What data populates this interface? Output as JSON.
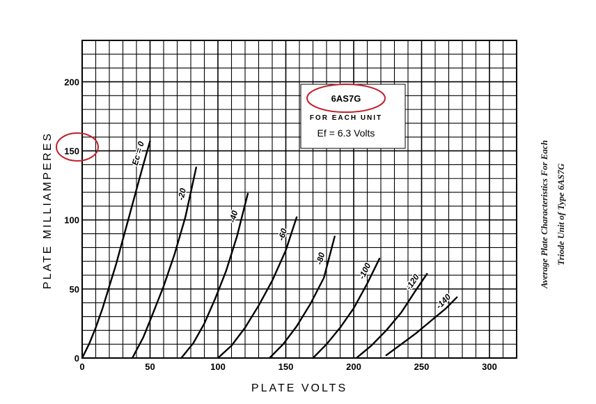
{
  "chart_data": {
    "type": "line",
    "title": "6AS7G",
    "subtitle": "FOR EACH UNIT",
    "condition": "Ef = 6.3 Volts",
    "xlabel": "PLATE VOLTS",
    "ylabel": "PLATE MILLIAMPERES",
    "xlim": [
      0,
      320
    ],
    "ylim": [
      0,
      230
    ],
    "x_ticks": [
      "0",
      "50",
      "100",
      "150",
      "200",
      "250",
      "300"
    ],
    "y_ticks": [
      "0",
      "50",
      "100",
      "150",
      "200"
    ],
    "grid": true,
    "series": [
      {
        "name": "Ec = 0",
        "x": [
          0,
          5,
          10,
          15,
          20,
          25,
          30,
          35,
          40,
          45,
          50
        ],
        "y": [
          0,
          10,
          22,
          36,
          52,
          68,
          86,
          104,
          122,
          140,
          157
        ]
      },
      {
        "name": "-20",
        "x": [
          37,
          45,
          52,
          60,
          68,
          76,
          84
        ],
        "y": [
          0,
          15,
          32,
          52,
          75,
          102,
          138
        ]
      },
      {
        "name": "-40",
        "x": [
          73,
          82,
          90,
          98,
          106,
          114,
          122
        ],
        "y": [
          0,
          11,
          25,
          43,
          63,
          88,
          119
        ]
      },
      {
        "name": "-60",
        "x": [
          100,
          110,
          120,
          130,
          140,
          150,
          158
        ],
        "y": [
          0,
          9,
          22,
          38,
          56,
          78,
          102
        ]
      },
      {
        "name": "-80",
        "x": [
          138,
          148,
          158,
          168,
          178,
          186
        ],
        "y": [
          0,
          10,
          23,
          39,
          58,
          88
        ]
      },
      {
        "name": "-100",
        "x": [
          170,
          180,
          190,
          200,
          210,
          219
        ],
        "y": [
          0,
          10,
          22,
          36,
          54,
          72
        ]
      },
      {
        "name": "-120",
        "x": [
          202,
          213,
          224,
          235,
          245,
          254
        ],
        "y": [
          0,
          9,
          20,
          33,
          48,
          61
        ]
      },
      {
        "name": "-140",
        "x": [
          224,
          235,
          246,
          257,
          268,
          276
        ],
        "y": [
          2,
          10,
          18,
          27,
          36,
          44
        ]
      }
    ]
  },
  "side_caption": {
    "line1": "Average Plate Characteristics For Each",
    "line2": "Triode Unit of Type 6AS7G"
  },
  "annotation_color": "#c0202b"
}
